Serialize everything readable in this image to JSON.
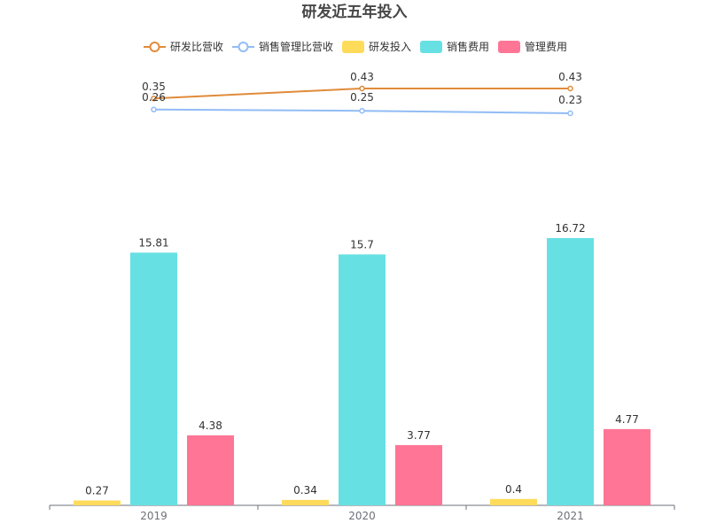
{
  "chart_data": {
    "type": "bar+line",
    "title": "研发近五年投入",
    "categories": [
      "2019",
      "2020",
      "2021"
    ],
    "legend_position": "top-center",
    "grid": false,
    "bar_series": [
      {
        "name": "研发投入",
        "color": "#ffdb5c",
        "values": [
          0.27,
          0.34,
          0.4
        ]
      },
      {
        "name": "销售费用",
        "color": "#67e0e3",
        "values": [
          15.81,
          15.7,
          16.72
        ]
      },
      {
        "name": "管理费用",
        "color": "#ff7596",
        "values": [
          4.38,
          3.77,
          4.77
        ]
      }
    ],
    "line_series": [
      {
        "name": "研发比营收",
        "color": "#e08b3a",
        "values": [
          0.35,
          0.43,
          0.43
        ]
      },
      {
        "name": "销售管理比营收",
        "color": "#91bcf5",
        "values": [
          0.26,
          0.25,
          0.23
        ]
      }
    ],
    "legend": [
      "研发比营收",
      "销售管理比营收",
      "研发投入",
      "销售费用",
      "管理费用"
    ]
  }
}
